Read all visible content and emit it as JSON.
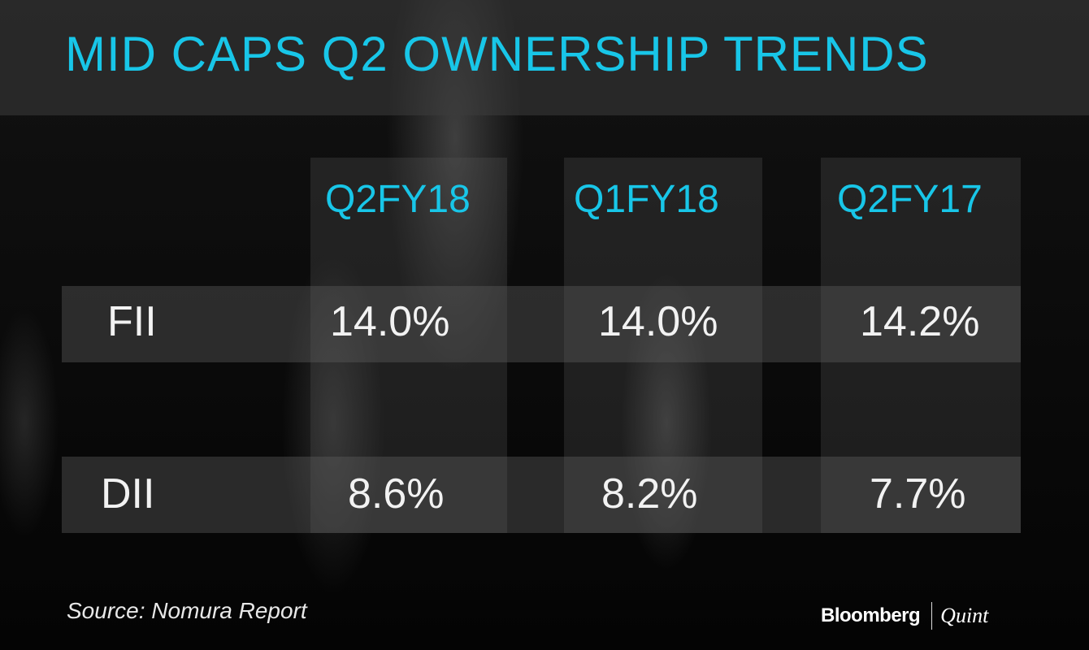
{
  "title": "MID CAPS Q2 OWNERSHIP TRENDS",
  "source": "Source: Nomura Report",
  "brand": {
    "left": "Bloomberg",
    "right": "Quint"
  },
  "colors": {
    "accent": "#18c6e8",
    "text": "#f2f2f2",
    "background": "#050505"
  },
  "chart_data": {
    "type": "table",
    "title": "MID CAPS Q2 OWNERSHIP TRENDS",
    "columns": [
      "Q2FY18",
      "Q1FY18",
      "Q2FY17"
    ],
    "rows": [
      {
        "label": "FII",
        "values": [
          "14.0%",
          "14.0%",
          "14.2%"
        ]
      },
      {
        "label": "DII",
        "values": [
          "8.6%",
          "8.2%",
          "7.7%"
        ]
      }
    ],
    "numeric": [
      [
        14.0,
        14.0,
        14.2
      ],
      [
        8.6,
        8.2,
        7.7
      ]
    ],
    "unit": "%"
  }
}
